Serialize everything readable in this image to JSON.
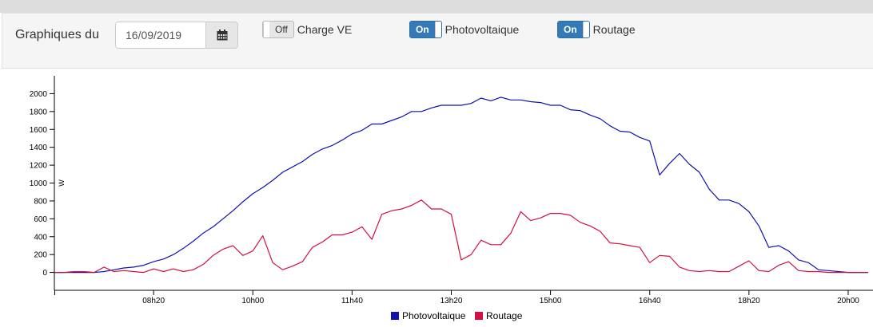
{
  "header": {
    "title": "Graphiques du",
    "date_value": "16/09/2019",
    "calendar_icon": "calendar-icon",
    "toggles": [
      {
        "state": "Off",
        "label": "Charge VE",
        "on": false
      },
      {
        "state": "On",
        "label": "Photovoltaique",
        "on": true
      },
      {
        "state": "On",
        "label": "Routage",
        "on": true
      }
    ]
  },
  "chart_data": {
    "type": "line",
    "ylabel": "W",
    "ylim": [
      -200,
      2200
    ],
    "yticks": [
      0,
      200,
      400,
      600,
      800,
      1000,
      1200,
      1400,
      1600,
      1800,
      2000
    ],
    "xlim": [
      "06:40",
      "20:25"
    ],
    "xticks": [
      "08h20",
      "10h00",
      "11h40",
      "13h20",
      "15h00",
      "16h40",
      "18h20",
      "20h00"
    ],
    "legend_position": "bottom-center",
    "grid": false,
    "series": [
      {
        "name": "Photovoltaique",
        "color": "#1010b0",
        "x": [
          "06:40",
          "06:50",
          "07:00",
          "07:10",
          "07:20",
          "07:30",
          "07:40",
          "07:50",
          "08:00",
          "08:10",
          "08:20",
          "08:30",
          "08:40",
          "08:50",
          "09:00",
          "09:10",
          "09:20",
          "09:30",
          "09:40",
          "09:50",
          "10:00",
          "10:10",
          "10:20",
          "10:30",
          "10:40",
          "10:50",
          "11:00",
          "11:10",
          "11:20",
          "11:30",
          "11:40",
          "11:50",
          "12:00",
          "12:10",
          "12:20",
          "12:30",
          "12:40",
          "12:50",
          "13:00",
          "13:10",
          "13:20",
          "13:30",
          "13:40",
          "13:50",
          "14:00",
          "14:10",
          "14:20",
          "14:30",
          "14:40",
          "14:50",
          "15:00",
          "15:10",
          "15:20",
          "15:30",
          "15:40",
          "15:50",
          "16:00",
          "16:10",
          "16:20",
          "16:30",
          "16:40",
          "16:50",
          "17:00",
          "17:10",
          "17:20",
          "17:30",
          "17:40",
          "17:50",
          "18:00",
          "18:10",
          "18:20",
          "18:30",
          "18:40",
          "18:50",
          "19:00",
          "19:10",
          "19:20",
          "19:30",
          "19:40",
          "19:50",
          "20:00",
          "20:10",
          "20:20"
        ],
        "values": [
          0,
          0,
          0,
          0,
          0,
          10,
          30,
          50,
          60,
          80,
          120,
          150,
          200,
          270,
          350,
          440,
          510,
          600,
          690,
          790,
          880,
          950,
          1030,
          1120,
          1180,
          1240,
          1320,
          1380,
          1420,
          1480,
          1550,
          1590,
          1660,
          1660,
          1700,
          1740,
          1800,
          1800,
          1840,
          1870,
          1870,
          1870,
          1890,
          1950,
          1920,
          1960,
          1930,
          1930,
          1910,
          1900,
          1870,
          1870,
          1820,
          1810,
          1760,
          1720,
          1640,
          1580,
          1570,
          1510,
          1470,
          1090,
          1220,
          1330,
          1210,
          1120,
          930,
          810,
          810,
          770,
          680,
          520,
          280,
          300,
          240,
          140,
          110,
          30,
          20,
          10,
          0,
          0,
          0
        ]
      },
      {
        "name": "Routage",
        "color": "#d01040",
        "x": [
          "06:40",
          "06:50",
          "07:00",
          "07:10",
          "07:20",
          "07:30",
          "07:40",
          "07:50",
          "08:00",
          "08:10",
          "08:20",
          "08:30",
          "08:40",
          "08:50",
          "09:00",
          "09:10",
          "09:20",
          "09:30",
          "09:40",
          "09:50",
          "10:00",
          "10:10",
          "10:20",
          "10:30",
          "10:40",
          "10:50",
          "11:00",
          "11:10",
          "11:20",
          "11:30",
          "11:40",
          "11:50",
          "12:00",
          "12:10",
          "12:20",
          "12:30",
          "12:40",
          "12:50",
          "13:00",
          "13:10",
          "13:20",
          "13:30",
          "13:40",
          "13:50",
          "14:00",
          "14:10",
          "14:20",
          "14:30",
          "14:40",
          "14:50",
          "15:00",
          "15:10",
          "15:20",
          "15:30",
          "15:40",
          "15:50",
          "16:00",
          "16:10",
          "16:20",
          "16:30",
          "16:40",
          "16:50",
          "17:00",
          "17:10",
          "17:20",
          "17:30",
          "17:40",
          "17:50",
          "18:00",
          "18:10",
          "18:20",
          "18:30",
          "18:40",
          "18:50",
          "19:00",
          "19:10",
          "19:20",
          "19:30",
          "19:40",
          "19:50",
          "20:00",
          "20:10",
          "20:20"
        ],
        "values": [
          0,
          0,
          10,
          10,
          0,
          60,
          10,
          20,
          10,
          0,
          40,
          10,
          40,
          10,
          30,
          90,
          190,
          260,
          300,
          190,
          240,
          410,
          110,
          30,
          70,
          120,
          280,
          340,
          420,
          420,
          450,
          510,
          370,
          650,
          690,
          710,
          750,
          810,
          710,
          710,
          650,
          140,
          200,
          360,
          310,
          310,
          440,
          680,
          580,
          610,
          660,
          660,
          640,
          560,
          520,
          460,
          330,
          320,
          300,
          280,
          110,
          190,
          180,
          60,
          20,
          10,
          20,
          10,
          10,
          70,
          130,
          20,
          10,
          80,
          120,
          20,
          10,
          10,
          0,
          0,
          0,
          0,
          0
        ]
      }
    ]
  }
}
